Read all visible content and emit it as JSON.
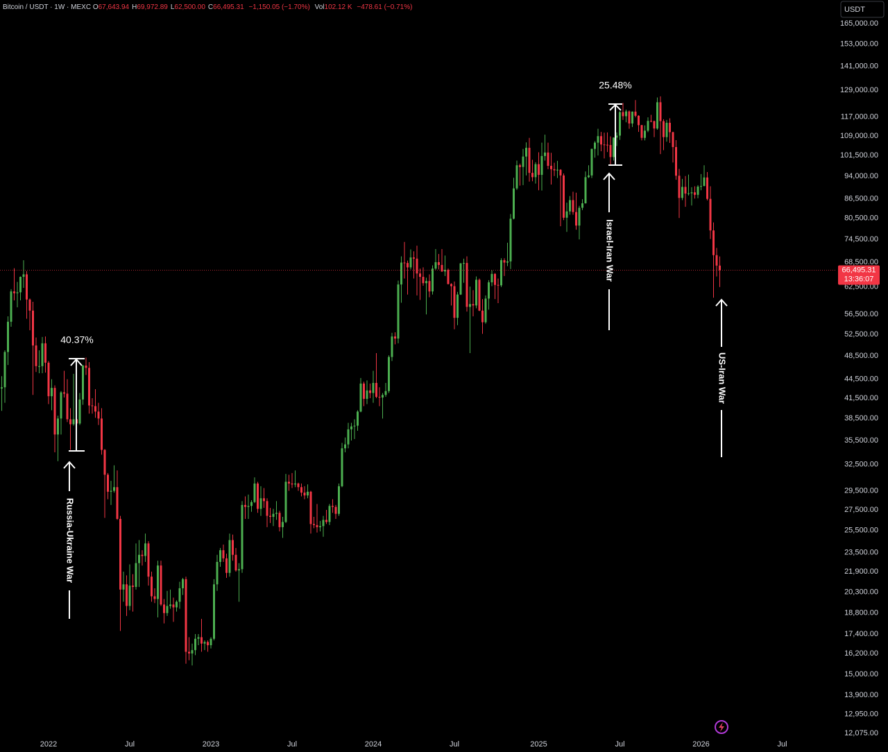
{
  "chart_data": {
    "type": "candlestick",
    "title": "Bitcoin / USDT · 1W · MEXC",
    "legend": [
      {
        "key": "O",
        "value": "67,643.94"
      },
      {
        "key": "H",
        "value": "69,972.89"
      },
      {
        "key": "L",
        "value": "62,500.00"
      },
      {
        "key": "C",
        "value": "66,495.31"
      }
    ],
    "change": "−1,150.05 (−1.70%)",
    "volume": {
      "key": "Vol",
      "value": "102.12 K",
      "change": "−478.61 (−0.71%)"
    },
    "currency_button": "USDT",
    "price_label": "66,495.31",
    "countdown": "13:36:07",
    "up_color": "#4caf50",
    "down_color": "#f23645",
    "log_scale": true,
    "grid": false,
    "annotations": [
      "40.37%",
      "25.48%",
      "Russia-Ukraine War",
      "Israel-Iran War",
      "US-Iran War"
    ],
    "ylim": [
      11980,
      180000
    ],
    "yticks": [
      {
        "value": 165000,
        "label": "165,000.00"
      },
      {
        "value": 153000,
        "label": "153,000.00"
      },
      {
        "value": 141000,
        "label": "141,000.00"
      },
      {
        "value": 129000,
        "label": "129,000.00"
      },
      {
        "value": 117000,
        "label": "117,000.00"
      },
      {
        "value": 109000,
        "label": "109,000.00"
      },
      {
        "value": 101500,
        "label": "101,500.00"
      },
      {
        "value": 94000,
        "label": "94,000.00"
      },
      {
        "value": 86500,
        "label": "86,500.00"
      },
      {
        "value": 80500,
        "label": "80,500.00"
      },
      {
        "value": 74500,
        "label": "74,500.00"
      },
      {
        "value": 68500,
        "label": "68,500.00"
      },
      {
        "value": 62500,
        "label": "62,500.00"
      },
      {
        "value": 56500,
        "label": "56,500.00"
      },
      {
        "value": 52500,
        "label": "52,500.00"
      },
      {
        "value": 48500,
        "label": "48,500.00"
      },
      {
        "value": 44500,
        "label": "44,500.00"
      },
      {
        "value": 41500,
        "label": "41,500.00"
      },
      {
        "value": 38500,
        "label": "38,500.00"
      },
      {
        "value": 35500,
        "label": "35,500.00"
      },
      {
        "value": 32500,
        "label": "32,500.00"
      },
      {
        "value": 29500,
        "label": "29,500.00"
      },
      {
        "value": 27500,
        "label": "27,500.00"
      },
      {
        "value": 25500,
        "label": "25,500.00"
      },
      {
        "value": 23500,
        "label": "23,500.00"
      },
      {
        "value": 21900,
        "label": "21,900.00"
      },
      {
        "value": 20300,
        "label": "20,300.00"
      },
      {
        "value": 18800,
        "label": "18,800.00"
      },
      {
        "value": 17400,
        "label": "17,400.00"
      },
      {
        "value": 16200,
        "label": "16,200.00"
      },
      {
        "value": 15000,
        "label": "15,000.00"
      },
      {
        "value": 13900,
        "label": "13,900.00"
      },
      {
        "value": 12950,
        "label": "12,950.00"
      },
      {
        "value": 12075,
        "label": "12,075.00"
      }
    ],
    "categories": [
      null,
      null,
      null,
      null,
      null,
      null,
      null,
      null,
      null,
      null,
      null,
      null,
      null,
      null,
      null,
      null,
      "2022",
      null,
      null,
      null,
      null,
      null,
      null,
      null,
      null,
      null,
      null,
      null,
      null,
      null,
      null,
      null,
      null,
      null,
      null,
      null,
      null,
      null,
      null,
      null,
      null,
      null,
      "Jul",
      null,
      null,
      null,
      null,
      null,
      null,
      null,
      null,
      null,
      null,
      null,
      null,
      null,
      null,
      null,
      null,
      null,
      null,
      null,
      null,
      null,
      null,
      null,
      null,
      null,
      "2023",
      null,
      null,
      null,
      null,
      null,
      null,
      null,
      null,
      null,
      null,
      null,
      null,
      null,
      null,
      null,
      null,
      null,
      null,
      null,
      null,
      null,
      null,
      null,
      null,
      null,
      "Jul",
      null,
      null,
      null,
      null,
      null,
      null,
      null,
      null,
      null,
      null,
      null,
      null,
      null,
      null,
      null,
      null,
      null,
      null,
      null,
      null,
      null,
      null,
      null,
      null,
      null,
      "2024",
      null,
      null,
      null,
      null,
      null,
      null,
      null,
      null,
      null,
      null,
      null,
      null,
      null,
      null,
      null,
      null,
      null,
      null,
      null,
      null,
      null,
      null,
      null,
      null,
      null,
      "Jul",
      null,
      null,
      null,
      null,
      null,
      null,
      null,
      null,
      null,
      null,
      null,
      null,
      null,
      null,
      null,
      null,
      null,
      null,
      null,
      null,
      null,
      null,
      null,
      null,
      null,
      null,
      "2025",
      null,
      null,
      null,
      null,
      null,
      null,
      null,
      null,
      null,
      null,
      null,
      null,
      null,
      null,
      null,
      null,
      null,
      null,
      null,
      null,
      null,
      null,
      null,
      null,
      null,
      "Jul",
      null,
      null,
      null,
      null,
      null,
      null,
      null,
      null,
      null,
      null,
      null,
      null,
      null,
      null,
      null,
      null,
      null,
      null,
      null,
      null,
      null,
      null,
      null,
      null,
      null,
      "2026",
      null,
      null,
      null,
      null,
      null,
      null,
      null,
      null,
      null,
      null,
      null,
      null,
      null,
      null,
      null,
      null,
      null,
      null,
      null,
      null,
      null,
      null,
      null,
      null,
      null,
      "Jul"
    ],
    "open": [
      45000,
      43000,
      43200,
      49200,
      55000,
      61500,
      61100,
      61300,
      64900,
      65500,
      59700,
      57300,
      50400,
      46700,
      46700,
      50800,
      47300,
      41800,
      43100,
      36300,
      38500,
      42400,
      42200,
      38400,
      37700,
      38400,
      37800,
      41300,
      46800,
      46400,
      40400,
      40300,
      39500,
      38500,
      34300,
      31300,
      29400,
      29500,
      29900,
      26600,
      20500,
      20900,
      19300,
      20800,
      20700,
      22600,
      23300,
      23200,
      24300,
      21500,
      20000,
      19800,
      22400,
      19400,
      18800,
      19300,
      19400,
      19200,
      19600,
      20600,
      21300,
      16300,
      16200,
      16400,
      17100,
      17200,
      16800,
      16900,
      16700,
      17100,
      20900,
      22700,
      23700,
      23000,
      21800,
      24600,
      23300,
      22000,
      22100,
      28000,
      27800,
      27900,
      28300,
      30300,
      27600,
      28700,
      28400,
      26900,
      26800,
      27100,
      27200,
      25800,
      26300,
      30500,
      30300,
      30200,
      30300,
      29900,
      29300,
      29000,
      29400,
      26100,
      26000,
      25800,
      25900,
      26500,
      26300,
      27900,
      27800,
      27100,
      30000,
      34500,
      35000,
      37000,
      37400,
      37500,
      39500,
      43800,
      41400,
      42700,
      42300,
      43900,
      41700,
      41600,
      42000,
      42600,
      48300,
      52100,
      51700,
      63100,
      68400,
      68300,
      67200,
      69700,
      69400,
      65700,
      64900,
      63400,
      63900,
      61500,
      66900,
      68500,
      67800,
      66200,
      66600,
      63200,
      62700,
      55800,
      60800,
      68200,
      68300,
      58100,
      58700,
      58400,
      64200,
      57300,
      54900,
      59900,
      63600,
      65600,
      63000,
      62900,
      69000,
      68400,
      68700,
      80400,
      89900,
      97900,
      97300,
      101100,
      104400,
      95200,
      93700,
      98300,
      94500,
      101300,
      102600,
      97700,
      96500,
      96100,
      96300,
      94300,
      80700,
      82600,
      86100,
      82400,
      78400,
      83700,
      85100,
      93700,
      94300,
      104000,
      106400,
      109000,
      105700,
      105600,
      105500,
      100900,
      108400,
      109200,
      119100,
      117300,
      119400,
      114200,
      119300,
      117500,
      113500,
      108300,
      111200,
      115300,
      115200,
      112100,
      123500,
      115200,
      108600,
      114500,
      110600,
      104700,
      94200,
      86800,
      90400,
      88200,
      88300,
      88600,
      87800,
      90500,
      90700,
      93600,
      86500,
      77000,
      70300,
      67643.94,
      null,
      null,
      null,
      null,
      null,
      null,
      null,
      null,
      null,
      null,
      null,
      null,
      null,
      null,
      null,
      null,
      null,
      null,
      null,
      null
    ],
    "high": [
      48800,
      45000,
      49500,
      56100,
      62000,
      67000,
      63700,
      65000,
      69000,
      66300,
      59900,
      59200,
      51900,
      49500,
      52000,
      52100,
      47600,
      44500,
      43500,
      38900,
      42600,
      45900,
      44500,
      40000,
      45400,
      42600,
      42300,
      46900,
      48200,
      47400,
      41500,
      42900,
      40800,
      40000,
      34400,
      31500,
      30600,
      32400,
      31800,
      26900,
      21900,
      21600,
      22500,
      21700,
      24300,
      24600,
      23700,
      25200,
      24500,
      21900,
      20600,
      22800,
      22800,
      19800,
      20400,
      20500,
      19900,
      19700,
      21100,
      21400,
      21500,
      17200,
      16800,
      17400,
      17400,
      18400,
      17000,
      17000,
      17200,
      21300,
      23300,
      23900,
      24200,
      23400,
      25200,
      25100,
      23900,
      22600,
      28400,
      28900,
      29100,
      28500,
      31000,
      30500,
      30000,
      29800,
      28700,
      27700,
      27600,
      28400,
      27400,
      26800,
      31400,
      31300,
      31500,
      31800,
      30400,
      30300,
      30000,
      30200,
      29500,
      26800,
      28100,
      26400,
      26900,
      27500,
      28100,
      28600,
      28000,
      30300,
      35200,
      35900,
      37900,
      37900,
      38400,
      39700,
      44700,
      44100,
      44300,
      43800,
      45900,
      49000,
      43200,
      42300,
      43900,
      48600,
      52800,
      52900,
      64000,
      70000,
      73800,
      68900,
      71800,
      71300,
      72800,
      66900,
      67200,
      64700,
      65500,
      67700,
      71900,
      70600,
      71900,
      70200,
      66900,
      63400,
      63800,
      61400,
      68300,
      69400,
      70000,
      62600,
      61800,
      65000,
      64500,
      59800,
      60600,
      64100,
      66500,
      65800,
      64500,
      69500,
      69500,
      73600,
      81800,
      93500,
      99600,
      98500,
      104000,
      106500,
      108300,
      99900,
      99000,
      102700,
      106400,
      109600,
      106400,
      102500,
      98800,
      99500,
      96500,
      95000,
      85300,
      87400,
      88800,
      88500,
      84300,
      86400,
      95700,
      97900,
      104100,
      107000,
      112000,
      110700,
      110400,
      110500,
      108900,
      108500,
      110500,
      119500,
      123200,
      120200,
      119800,
      119400,
      124500,
      117700,
      113600,
      113400,
      116800,
      117900,
      115400,
      125700,
      126200,
      116000,
      115700,
      116400,
      110800,
      107400,
      96600,
      93100,
      94100,
      94600,
      90300,
      90600,
      91000,
      94800,
      97900,
      95500,
      90600,
      79300,
      72200,
      69972.89,
      null,
      null,
      null,
      null,
      null,
      null,
      null,
      null,
      null,
      null,
      null,
      null,
      null,
      null,
      null,
      null,
      null,
      null,
      null,
      null
    ],
    "low": [
      42800,
      39600,
      40800,
      46900,
      54000,
      59500,
      58000,
      59500,
      62300,
      55600,
      53300,
      42000,
      45700,
      45500,
      45500,
      45600,
      40600,
      39700,
      34000,
      32900,
      36300,
      41600,
      38000,
      34300,
      37500,
      37200,
      37600,
      40500,
      45200,
      39200,
      39200,
      38600,
      37600,
      33700,
      26700,
      28600,
      28000,
      29300,
      26500,
      17600,
      19600,
      18600,
      19000,
      18900,
      20500,
      20700,
      22400,
      22700,
      20800,
      19600,
      19500,
      18500,
      19300,
      18100,
      18600,
      19100,
      18200,
      18900,
      19100,
      20100,
      15600,
      15800,
      15500,
      16100,
      16700,
      16300,
      16400,
      16300,
      16500,
      17000,
      20400,
      22300,
      22700,
      21400,
      21500,
      22800,
      21900,
      19600,
      21800,
      26600,
      26600,
      27300,
      28200,
      27200,
      26900,
      27700,
      25800,
      26200,
      25900,
      26500,
      25400,
      24800,
      26200,
      29500,
      29800,
      29900,
      29500,
      28900,
      28600,
      28700,
      25200,
      25700,
      25300,
      25400,
      24900,
      26100,
      26000,
      27200,
      26600,
      26900,
      29900,
      34000,
      34500,
      35500,
      35700,
      36800,
      39400,
      40300,
      40600,
      41500,
      40800,
      41500,
      40300,
      38500,
      41700,
      42300,
      47600,
      50600,
      50800,
      59000,
      64500,
      60800,
      66700,
      64500,
      60600,
      59600,
      62800,
      56500,
      60200,
      60800,
      66600,
      66700,
      66100,
      65100,
      63100,
      58400,
      53500,
      54300,
      60700,
      63500,
      57100,
      49000,
      56100,
      57800,
      57200,
      52600,
      54600,
      57500,
      62700,
      59800,
      58900,
      62500,
      65100,
      67500,
      66800,
      80200,
      89400,
      90800,
      91000,
      94300,
      92200,
      92300,
      91500,
      89300,
      89200,
      99600,
      96500,
      91200,
      94100,
      93400,
      78200,
      80000,
      76600,
      81600,
      81600,
      77200,
      74500,
      83000,
      85000,
      93400,
      93400,
      100700,
      101500,
      103100,
      100400,
      102800,
      98200,
      99600,
      105100,
      107500,
      115700,
      114700,
      112000,
      112700,
      116800,
      110700,
      107300,
      107300,
      110600,
      114700,
      108600,
      111600,
      102000,
      103500,
      106800,
      106300,
      98900,
      92800,
      80600,
      86100,
      84000,
      87600,
      84400,
      86600,
      86700,
      89300,
      90600,
      86000,
      74600,
      60100,
      65000,
      62500,
      null,
      null,
      null,
      null,
      null,
      null,
      null,
      null,
      null,
      null,
      null,
      null,
      null,
      null,
      null,
      null,
      null,
      null,
      null,
      null
    ],
    "close": [
      43000,
      43200,
      49200,
      55000,
      61500,
      61100,
      61300,
      64900,
      65500,
      59700,
      57300,
      50400,
      46700,
      46700,
      50800,
      47300,
      41800,
      43100,
      36300,
      38500,
      42400,
      42200,
      38400,
      37700,
      38400,
      37800,
      41300,
      46800,
      46400,
      40400,
      40300,
      39500,
      38500,
      34300,
      31300,
      29400,
      29500,
      29900,
      26600,
      20500,
      20900,
      19300,
      20800,
      20700,
      22600,
      23300,
      23200,
      24300,
      21500,
      20000,
      19800,
      22400,
      19400,
      18800,
      19300,
      19400,
      19200,
      19600,
      20600,
      21300,
      16300,
      16200,
      16400,
      17100,
      17200,
      16800,
      16900,
      16700,
      17100,
      20900,
      22700,
      23700,
      23000,
      21800,
      24600,
      23300,
      22000,
      22100,
      28000,
      27800,
      27900,
      28300,
      30300,
      27600,
      28700,
      28400,
      26900,
      26800,
      27100,
      27200,
      25800,
      26300,
      30500,
      30300,
      30200,
      30300,
      29900,
      29300,
      29000,
      29400,
      26100,
      26000,
      25800,
      25900,
      26500,
      26300,
      27900,
      27800,
      27100,
      30000,
      34500,
      35000,
      37000,
      37400,
      37500,
      39500,
      43800,
      41400,
      42700,
      42300,
      43900,
      41700,
      41600,
      42000,
      42600,
      48300,
      52100,
      51700,
      63100,
      68400,
      68300,
      67200,
      69700,
      69400,
      65700,
      64900,
      63400,
      63900,
      61500,
      66900,
      68500,
      67800,
      66200,
      66600,
      63200,
      62700,
      55800,
      60800,
      68200,
      68300,
      58100,
      58700,
      58400,
      64200,
      57300,
      54900,
      59900,
      63600,
      65600,
      63000,
      62900,
      69000,
      68400,
      68700,
      80400,
      89900,
      97900,
      97300,
      101100,
      104400,
      95200,
      93700,
      98300,
      94500,
      101300,
      102600,
      97700,
      96500,
      96100,
      96300,
      94300,
      80700,
      82600,
      86100,
      82400,
      78400,
      83700,
      85100,
      93700,
      94300,
      104000,
      106400,
      109000,
      105700,
      105600,
      105500,
      100900,
      108400,
      109200,
      119100,
      117300,
      119400,
      114200,
      119300,
      117500,
      113500,
      108300,
      111200,
      115300,
      115200,
      112100,
      123500,
      115200,
      108600,
      114500,
      110600,
      104700,
      94200,
      86800,
      90400,
      88200,
      88300,
      88600,
      87800,
      90500,
      90700,
      93600,
      86500,
      77000,
      70300,
      67644,
      66495.31,
      null,
      null,
      null,
      null,
      null,
      null,
      null,
      null,
      null,
      null,
      null,
      null,
      null,
      null,
      null,
      null,
      null,
      null,
      null,
      null
    ]
  }
}
